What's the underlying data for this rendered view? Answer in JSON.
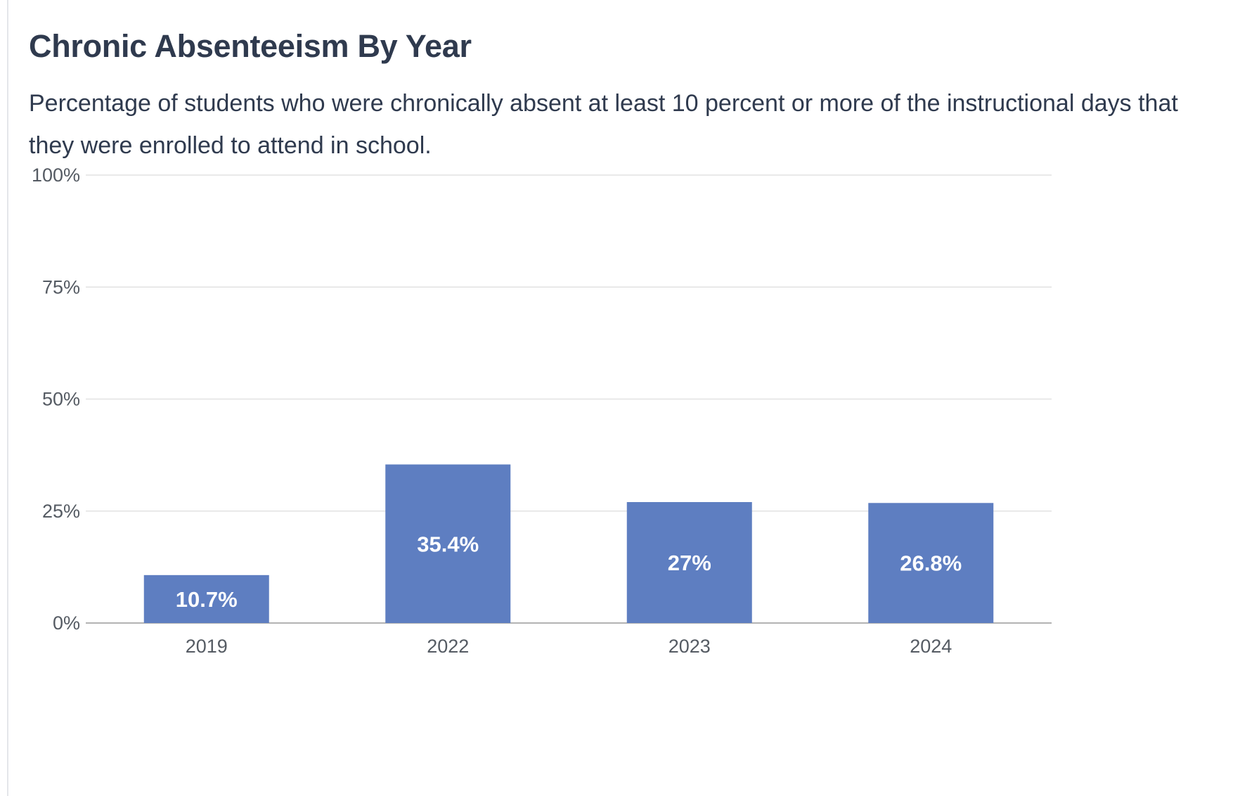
{
  "chart_data": {
    "type": "bar",
    "title": "Chronic Absenteeism By Year",
    "subtitle": "Percentage of students who were chronically absent at least 10 percent or more of the instructional days that they were enrolled to attend in school.",
    "categories": [
      "2019",
      "2022",
      "2023",
      "2024"
    ],
    "values": [
      10.7,
      35.4,
      27,
      26.8
    ],
    "data_labels": [
      "10.7%",
      "35.4%",
      "27%",
      "26.8%"
    ],
    "ylim": [
      0,
      100
    ],
    "yticks": [
      0,
      25,
      50,
      75,
      100
    ],
    "ytick_labels": [
      "0%",
      "25%",
      "50%",
      "75%",
      "100%"
    ],
    "xlabel": "",
    "ylabel": "",
    "grid": true,
    "bar_color": "#5e7ec1"
  }
}
